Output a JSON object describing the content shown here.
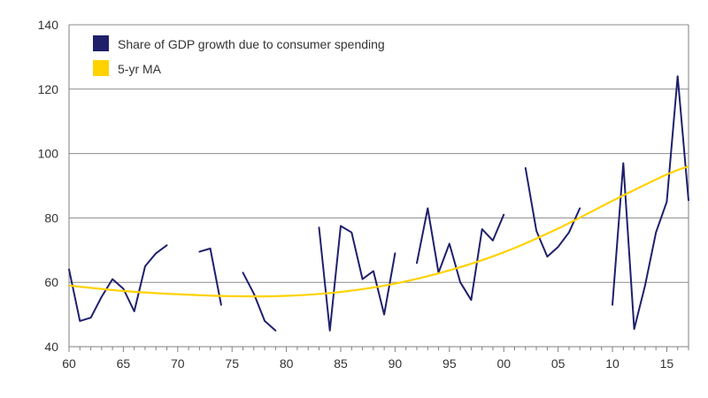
{
  "chart_data": {
    "type": "line",
    "title": "",
    "xlabel": "",
    "ylabel": "",
    "xlim": [
      1960,
      2017
    ],
    "ylim": [
      40,
      140
    ],
    "grid": true,
    "legend_position": "top-left",
    "x_ticks": [
      {
        "value": 1960,
        "label": "60"
      },
      {
        "value": 1965,
        "label": "65"
      },
      {
        "value": 1970,
        "label": "70"
      },
      {
        "value": 1975,
        "label": "75"
      },
      {
        "value": 1980,
        "label": "80"
      },
      {
        "value": 1985,
        "label": "85"
      },
      {
        "value": 1990,
        "label": "90"
      },
      {
        "value": 1995,
        "label": "95"
      },
      {
        "value": 2000,
        "label": "00"
      },
      {
        "value": 2005,
        "label": "05"
      },
      {
        "value": 2010,
        "label": "10"
      },
      {
        "value": 2015,
        "label": "15"
      }
    ],
    "y_ticks": [
      {
        "value": 40,
        "label": "40"
      },
      {
        "value": 60,
        "label": "60"
      },
      {
        "value": 80,
        "label": "80"
      },
      {
        "value": 100,
        "label": "100"
      },
      {
        "value": 120,
        "label": "120"
      },
      {
        "value": 140,
        "label": "140"
      }
    ],
    "series": [
      {
        "name": "Share of GDP growth due to consumer spending",
        "color": "#1f1f6e",
        "legend_swatch": "#20206a",
        "segments": [
          [
            [
              1960,
              64
            ],
            [
              1961,
              48
            ],
            [
              1962,
              49
            ],
            [
              1963,
              55.5
            ],
            [
              1964,
              61
            ],
            [
              1965,
              58
            ],
            [
              1966,
              51
            ],
            [
              1967,
              65
            ],
            [
              1968,
              69
            ],
            [
              1969,
              71.5
            ]
          ],
          [
            [
              1972,
              69.5
            ],
            [
              1973,
              70.5
            ],
            [
              1974,
              53
            ]
          ],
          [
            [
              1976,
              63
            ],
            [
              1977,
              56.5
            ],
            [
              1978,
              48
            ],
            [
              1979,
              45
            ]
          ],
          [
            [
              1983,
              77
            ],
            [
              1984,
              45
            ],
            [
              1985,
              77.5
            ],
            [
              1986,
              75.5
            ],
            [
              1987,
              61
            ],
            [
              1988,
              63.5
            ],
            [
              1989,
              50
            ],
            [
              1990,
              69
            ]
          ],
          [
            [
              1992,
              66
            ],
            [
              1993,
              83
            ],
            [
              1994,
              63
            ],
            [
              1995,
              72
            ],
            [
              1996,
              60
            ],
            [
              1997,
              54.5
            ],
            [
              1998,
              76.5
            ],
            [
              1999,
              73
            ],
            [
              2000,
              81
            ]
          ],
          [
            [
              2002,
              95.5
            ],
            [
              2003,
              76
            ],
            [
              2004,
              68
            ],
            [
              2005,
              71
            ],
            [
              2006,
              75.5
            ],
            [
              2007,
              83
            ]
          ],
          [
            [
              2010,
              53
            ],
            [
              2011,
              97
            ],
            [
              2012,
              45.5
            ],
            [
              2013,
              59
            ],
            [
              2014,
              75.5
            ],
            [
              2015,
              85
            ],
            [
              2016,
              124
            ],
            [
              2017,
              85.5
            ]
          ]
        ]
      },
      {
        "name": "5-yr MA",
        "color": "#ffd200",
        "legend_swatch": "#ffd200",
        "points": [
          [
            1960,
            59
          ],
          [
            1965,
            57.3
          ],
          [
            1970,
            56.3
          ],
          [
            1975,
            55.7
          ],
          [
            1980,
            55.8
          ],
          [
            1985,
            57
          ],
          [
            1990,
            59.6
          ],
          [
            1995,
            63.7
          ],
          [
            2000,
            69.3
          ],
          [
            2005,
            76.7
          ],
          [
            2010,
            85.3
          ],
          [
            2015,
            93.5
          ],
          [
            2017,
            96
          ]
        ]
      }
    ]
  }
}
